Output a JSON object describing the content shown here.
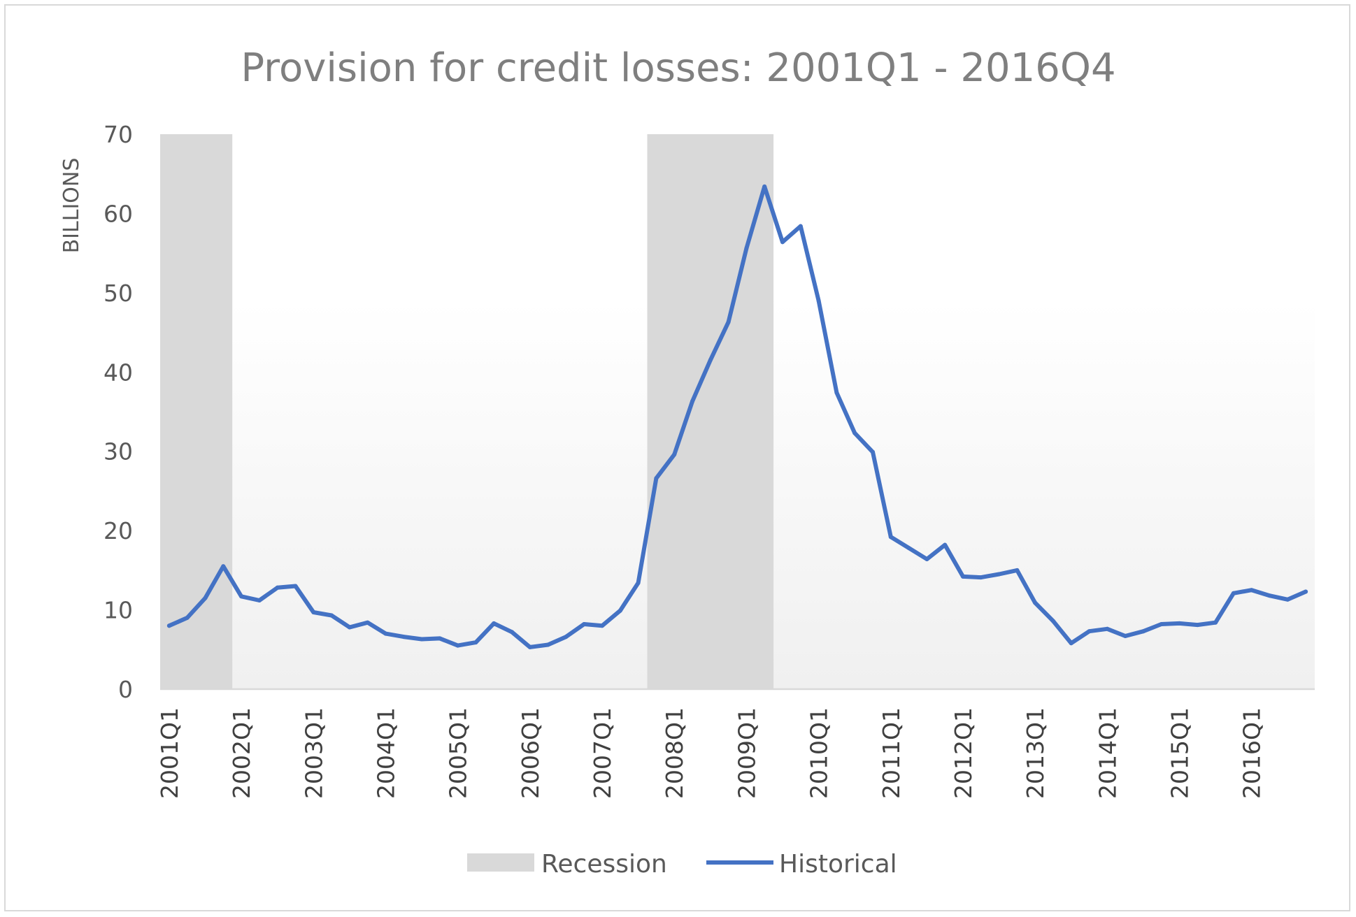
{
  "chart_data": {
    "type": "line",
    "title": "Provision for credit losses: 2001Q1 - 2016Q4",
    "xlabel": "",
    "ylabel": "BILLIONS",
    "ylim": [
      0,
      70
    ],
    "yticks": [
      0,
      10,
      20,
      30,
      40,
      50,
      60,
      70
    ],
    "grid": false,
    "legend_placement": "bottom",
    "x_tick_labels": [
      "2001Q1",
      "2002Q1",
      "2003Q1",
      "2004Q1",
      "2005Q1",
      "2006Q1",
      "2007Q1",
      "2008Q1",
      "2009Q1",
      "2010Q1",
      "2011Q1",
      "2012Q1",
      "2013Q1",
      "2014Q1",
      "2015Q1",
      "2016Q1"
    ],
    "x": [
      "2001Q1",
      "2001Q2",
      "2001Q3",
      "2001Q4",
      "2002Q1",
      "2002Q2",
      "2002Q3",
      "2002Q4",
      "2003Q1",
      "2003Q2",
      "2003Q3",
      "2003Q4",
      "2004Q1",
      "2004Q2",
      "2004Q3",
      "2004Q4",
      "2005Q1",
      "2005Q2",
      "2005Q3",
      "2005Q4",
      "2006Q1",
      "2006Q2",
      "2006Q3",
      "2006Q4",
      "2007Q1",
      "2007Q2",
      "2007Q3",
      "2007Q4",
      "2008Q1",
      "2008Q2",
      "2008Q3",
      "2008Q4",
      "2009Q1",
      "2009Q2",
      "2009Q3",
      "2009Q4",
      "2010Q1",
      "2010Q2",
      "2010Q3",
      "2010Q4",
      "2011Q1",
      "2011Q2",
      "2011Q3",
      "2011Q4",
      "2012Q1",
      "2012Q2",
      "2012Q3",
      "2012Q4",
      "2013Q1",
      "2013Q2",
      "2013Q3",
      "2013Q4",
      "2014Q1",
      "2014Q2",
      "2014Q3",
      "2014Q4",
      "2015Q1",
      "2015Q2",
      "2015Q3",
      "2015Q4",
      "2016Q1",
      "2016Q2",
      "2016Q3",
      "2016Q4"
    ],
    "series": [
      {
        "name": "Historical",
        "color": "#4472c4",
        "values": [
          8.0,
          9.0,
          11.5,
          15.5,
          11.7,
          11.2,
          12.8,
          13.0,
          9.7,
          9.3,
          7.8,
          8.4,
          7.0,
          6.6,
          6.3,
          6.4,
          5.5,
          5.9,
          8.3,
          7.2,
          5.3,
          5.6,
          6.6,
          8.2,
          8.0,
          9.9,
          13.4,
          26.6,
          29.6,
          36.3,
          41.5,
          46.3,
          55.6,
          63.4,
          56.4,
          58.4,
          49.0,
          37.4,
          32.3,
          29.9,
          19.2,
          17.8,
          16.4,
          18.2,
          14.2,
          14.1,
          14.5,
          15.0,
          10.9,
          8.6,
          5.8,
          7.3,
          7.6,
          6.7,
          7.3,
          8.2,
          8.3,
          8.1,
          8.4,
          12.1,
          12.5,
          11.8,
          11.3,
          12.3
        ]
      }
    ],
    "recession": {
      "name": "Recession",
      "color": "#d9d9d9",
      "periods": [
        [
          "2001Q1",
          "2001Q4"
        ],
        [
          "2007Q4",
          "2009Q2"
        ]
      ]
    }
  }
}
